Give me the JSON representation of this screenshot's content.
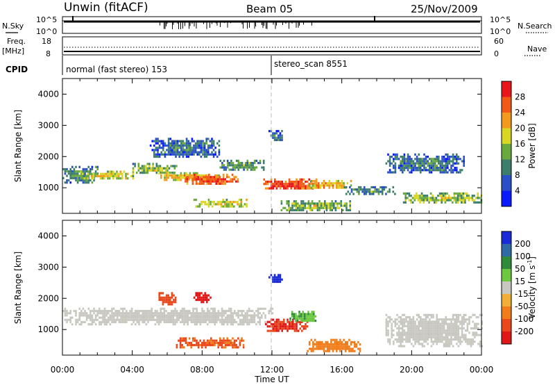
{
  "header": {
    "station": "Unwin (fitACF)",
    "beam": "Beam 05",
    "date": "25/Nov/2009"
  },
  "top_panels": {
    "nsky_label": "N.Sky",
    "nsearch_label": "N.Search",
    "freq_label": "Freq.",
    "freq_unit": "[MHz]",
    "nave_label": "Nave",
    "cpid_label": "CPID",
    "left_scale_noise": [
      "10^5",
      "10^0"
    ],
    "right_scale_noise": [
      "10^5",
      "10^0"
    ],
    "freq_ticks": [
      "18",
      "8"
    ],
    "nave_ticks": [
      "60",
      "0"
    ]
  },
  "cpid_segments": [
    {
      "label": "normal (fast stereo) 153",
      "start_hour": 0
    },
    {
      "label": "stereo_scan 8551",
      "start_hour": 12
    }
  ],
  "axes": {
    "x_label": "Time UT",
    "x_ticks": [
      "00:00",
      "04:00",
      "08:00",
      "12:00",
      "16:00",
      "20:00",
      "00:00"
    ],
    "y_label": "Slant Range [km]",
    "y_ticks": [
      "1000",
      "2000",
      "3000",
      "4000"
    ],
    "y_range_km": [
      180,
      4500
    ],
    "x_range_hours": [
      0,
      24
    ]
  },
  "colorbars": {
    "power": {
      "label": "Power [dB]",
      "ticks": [
        "4",
        "8",
        "12",
        "16",
        "20",
        "24",
        "28"
      ],
      "colors": [
        "#0a1aff",
        "#2a50c8",
        "#3d7d6c",
        "#6aa93e",
        "#d9d624",
        "#f29a1e",
        "#f05a16",
        "#e8161a"
      ]
    },
    "velocity": {
      "label": "Velocity [m s",
      "label_sup": "-1",
      "label_end": "]",
      "ticks": [
        "200",
        "100",
        "50",
        "15",
        "-15",
        "-50",
        "-100",
        "-200"
      ],
      "colors": [
        "#1a2ad6",
        "#2f6aa6",
        "#2f8a3a",
        "#6cc840",
        "#c8c8c0",
        "#f2ae36",
        "#f07c1a",
        "#e8481c",
        "#e01818"
      ]
    }
  },
  "chart_data": {
    "type": "heatmap",
    "title": "Unwin (fitACF) Beam 05 25/Nov/2009",
    "xlabel": "Time UT",
    "ylabel": "Slant Range [km]",
    "xlim_hours": [
      0,
      24
    ],
    "ylim_km": [
      180,
      4500
    ],
    "power_regions": [
      {
        "t0": 0.0,
        "t1": 2.0,
        "r0": 1150,
        "r1": 1700,
        "db": 10
      },
      {
        "t0": 1.0,
        "t1": 4.0,
        "r0": 1300,
        "r1": 1550,
        "db": 18
      },
      {
        "t0": 4.0,
        "t1": 6.5,
        "r0": 1450,
        "r1": 1800,
        "db": 14
      },
      {
        "t0": 5.5,
        "t1": 9.0,
        "r0": 1250,
        "r1": 1500,
        "db": 20
      },
      {
        "t0": 7.0,
        "t1": 10.0,
        "r0": 1100,
        "r1": 1450,
        "db": 26
      },
      {
        "t0": 9.0,
        "t1": 11.5,
        "r0": 1550,
        "r1": 1900,
        "db": 12
      },
      {
        "t0": 11.5,
        "t1": 14.5,
        "r0": 950,
        "r1": 1300,
        "db": 27
      },
      {
        "t0": 11.8,
        "t1": 12.6,
        "r0": 2500,
        "r1": 2850,
        "db": 8
      },
      {
        "t0": 14.0,
        "t1": 16.5,
        "r0": 1000,
        "r1": 1250,
        "db": 21
      },
      {
        "t0": 16.0,
        "t1": 19.0,
        "r0": 800,
        "r1": 1050,
        "db": 10
      },
      {
        "t0": 19.5,
        "t1": 24.0,
        "r0": 550,
        "r1": 850,
        "db": 15
      },
      {
        "t0": 18.5,
        "t1": 23.0,
        "r0": 1500,
        "r1": 2100,
        "db": 8
      },
      {
        "t0": 5.0,
        "t1": 9.0,
        "r0": 2000,
        "r1": 2600,
        "db": 8
      },
      {
        "t0": 7.5,
        "t1": 10.5,
        "r0": 400,
        "r1": 650,
        "db": 18
      },
      {
        "t0": 12.5,
        "t1": 16.5,
        "r0": 300,
        "r1": 600,
        "db": 14
      }
    ],
    "velocity_regions": [
      {
        "t0": 0.0,
        "t1": 12.0,
        "r0": 1200,
        "r1": 1700,
        "v": 0
      },
      {
        "t0": 6.5,
        "t1": 10.5,
        "r0": 450,
        "r1": 750,
        "v": -80
      },
      {
        "t0": 5.5,
        "t1": 6.5,
        "r0": 1800,
        "r1": 2200,
        "v": -120
      },
      {
        "t0": 7.5,
        "t1": 8.5,
        "r0": 1900,
        "r1": 2200,
        "v": -200
      },
      {
        "t0": 11.8,
        "t1": 12.6,
        "r0": 2500,
        "r1": 2850,
        "v": 200
      },
      {
        "t0": 11.5,
        "t1": 14.0,
        "r0": 950,
        "r1": 1350,
        "v": -150
      },
      {
        "t0": 13.0,
        "t1": 14.5,
        "r0": 1250,
        "r1": 1600,
        "v": 30
      },
      {
        "t0": 18.5,
        "t1": 24.0,
        "r0": 500,
        "r1": 1500,
        "v": 0
      },
      {
        "t0": 14.0,
        "t1": 17.0,
        "r0": 300,
        "r1": 700,
        "v": -60
      }
    ]
  }
}
